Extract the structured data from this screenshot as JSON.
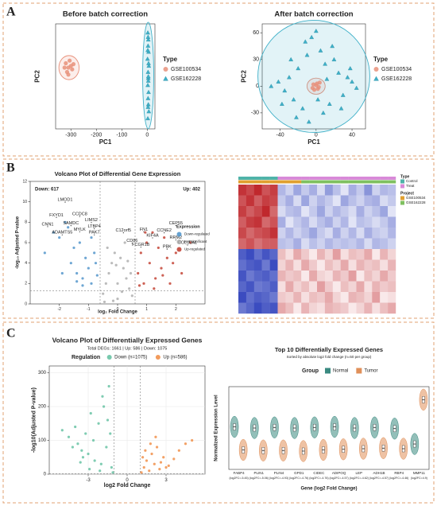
{
  "panels": [
    "A",
    "B",
    "C"
  ],
  "chart_data": [
    {
      "type": "scatter",
      "title": "Before batch correction",
      "x_label": "PC1",
      "y_label": "PC2",
      "xlim": [
        -360,
        30
      ],
      "xticks": [
        -300,
        -200,
        -100,
        0
      ],
      "ylim": [
        -60,
        60
      ],
      "legend_title": "Type",
      "markers": [
        "circle",
        "triangle"
      ],
      "ellipses": true,
      "series": [
        {
          "name": "GSE100534",
          "color": "#e8907a",
          "x": [
            -320,
            -310,
            -300,
            -315,
            -295,
            -305,
            -325,
            -290,
            -310
          ],
          "values": [
            15,
            10,
            12,
            5,
            8,
            18,
            10,
            14,
            2
          ]
        },
        {
          "name": "GSE162228",
          "color": "#3fb0c8",
          "x": [
            2,
            4,
            3,
            5,
            1,
            6,
            3,
            4,
            2,
            5,
            3,
            4,
            6,
            2,
            3,
            5,
            4,
            3,
            2,
            4
          ],
          "values": [
            50,
            42,
            35,
            28,
            20,
            12,
            5,
            -2,
            -10,
            -18,
            -25,
            -32,
            -40,
            -48,
            45,
            15,
            -5,
            -35,
            30,
            0
          ]
        }
      ]
    },
    {
      "type": "scatter",
      "title": "After batch correction",
      "x_label": "PC1",
      "y_label": "PC2",
      "xlim": [
        -60,
        55
      ],
      "xticks": [
        -40,
        0,
        40
      ],
      "ylim": [
        -48,
        70
      ],
      "yticks": [
        -30,
        0,
        30,
        60
      ],
      "legend_title": "Type",
      "markers": [
        "circle",
        "triangle"
      ],
      "ellipses": true,
      "series": [
        {
          "name": "GSE100534",
          "color": "#e8907a",
          "x": [
            -3,
            2,
            4,
            -2,
            0,
            3,
            -4,
            1
          ],
          "values": [
            2,
            -3,
            4,
            -4,
            1,
            -1,
            -2,
            3
          ]
        },
        {
          "name": "GSE162228",
          "color": "#3fb0c8",
          "x": [
            -50,
            -42,
            -35,
            -30,
            -25,
            -20,
            -15,
            -10,
            -5,
            0,
            5,
            10,
            15,
            20,
            25,
            30,
            35,
            40,
            45,
            -38,
            -22,
            -8,
            8,
            18,
            28,
            38,
            -28,
            12,
            2,
            -12
          ],
          "values": [
            0,
            5,
            -5,
            10,
            -15,
            20,
            -25,
            35,
            55,
            62,
            40,
            25,
            -20,
            30,
            15,
            -10,
            10,
            5,
            -2,
            -20,
            -35,
            -40,
            -30,
            45,
            -25,
            20,
            30,
            8,
            -15,
            50
          ]
        }
      ]
    },
    {
      "type": "volcano",
      "title": "Volcano Plot of Differential Gene Expression",
      "x_label": "log₂ Fold Change",
      "y_label": "-log₁₀ Adjusted P-value",
      "xlim": [
        -3,
        3
      ],
      "xticks": [
        -2,
        -1,
        0,
        1,
        2
      ],
      "ylim": [
        0,
        12
      ],
      "yticks": [
        0,
        2,
        4,
        6,
        8,
        10,
        12
      ],
      "thresholds": {
        "x": [
          -0.6,
          0.6
        ],
        "y": 1.3
      },
      "counts": [
        {
          "label": "Down: 617",
          "color": "#4a90c8"
        },
        {
          "label": "Up: 402",
          "color": "#c0392b"
        }
      ],
      "legend_title": "Expression",
      "series": [
        {
          "name": "Down-regulated",
          "color": "#4a90c8",
          "x": [
            -2.5,
            -2.2,
            -2.0,
            -1.8,
            -1.6,
            -1.5,
            -1.4,
            -1.3,
            -1.2,
            -1.1,
            -1.0,
            -0.9,
            -0.8,
            -0.7,
            -1.7,
            -1.9,
            -1.2,
            -0.9,
            -0.75,
            -1.4
          ],
          "values": [
            5,
            7,
            6.5,
            8,
            4,
            5.5,
            3,
            6,
            2.5,
            4.5,
            3.5,
            2,
            5,
            2.8,
            7.5,
            3,
            1.8,
            6.5,
            4,
            2.2
          ]
        },
        {
          "name": "Not significant",
          "color": "#aaaaaa",
          "x": [
            -0.5,
            -0.4,
            -0.3,
            -0.2,
            -0.1,
            0,
            0.1,
            0.2,
            0.3,
            0.4,
            0.5,
            -0.35,
            0.25,
            -0.15,
            0.45,
            0,
            -0.45,
            0.15,
            -0.05,
            0.35
          ],
          "values": [
            1,
            2,
            3,
            4,
            5,
            0.5,
            4.5,
            3.5,
            2.5,
            1.5,
            0.8,
            5.5,
            6,
            0.3,
            3,
            2,
            0.2,
            1.2,
            3.8,
            4.2
          ]
        },
        {
          "name": "Up-regulated",
          "color": "#c0392b",
          "x": [
            0.7,
            0.8,
            0.9,
            1.0,
            1.1,
            1.2,
            1.3,
            1.4,
            1.5,
            1.6,
            1.7,
            1.8,
            2.0,
            2.2,
            2.5,
            0.75,
            0.95,
            1.25,
            1.55,
            1.9
          ],
          "values": [
            3,
            5,
            2,
            6,
            4,
            7,
            2.5,
            5.5,
            3.5,
            6.5,
            4.5,
            2,
            5,
            3,
            6,
            1.8,
            7,
            1.5,
            2.8,
            4
          ]
        }
      ],
      "annotations": [
        {
          "label": "LMOD1",
          "x": -1.8,
          "y": 10.2
        },
        {
          "label": "FXYD1",
          "x": -2.1,
          "y": 8.7
        },
        {
          "label": "CCDC8",
          "x": -1.3,
          "y": 8.8
        },
        {
          "label": "LIMS2",
          "x": -0.9,
          "y": 8.2
        },
        {
          "label": "CNN1",
          "x": -2.4,
          "y": 7.8
        },
        {
          "label": "SAMDC",
          "x": -1.6,
          "y": 7.9
        },
        {
          "label": "LTBP4",
          "x": -0.8,
          "y": 7.6
        },
        {
          "label": "MYLK",
          "x": -1.3,
          "y": 7.3
        },
        {
          "label": "ADAMTS5",
          "x": -1.9,
          "y": 7.0
        },
        {
          "label": "PAK7",
          "x": -0.8,
          "y": 7.0
        },
        {
          "label": "C12orf5",
          "x": 0.2,
          "y": 7.2
        },
        {
          "label": "FN1",
          "x": 0.9,
          "y": 7.3
        },
        {
          "label": "CEP55",
          "x": 2.0,
          "y": 7.9
        },
        {
          "label": "CCNE2",
          "x": 1.6,
          "y": 7.2
        },
        {
          "label": "KIF4A",
          "x": 1.2,
          "y": 6.7
        },
        {
          "label": "RRM2",
          "x": 2.0,
          "y": 6.5
        },
        {
          "label": "CD86",
          "x": 0.5,
          "y": 6.2
        },
        {
          "label": "FCGR1B",
          "x": 0.8,
          "y": 5.8
        },
        {
          "label": "COL10A1",
          "x": 2.4,
          "y": 6.0
        },
        {
          "label": "PBK",
          "x": 1.7,
          "y": 5.6
        }
      ]
    },
    {
      "type": "heatmap",
      "zlim": [
        -2,
        2
      ],
      "colors": [
        "#3b4cc0",
        "#ffffff",
        "#c0282d"
      ],
      "values": [
        [
          1.9,
          1.7,
          2.0,
          1.6,
          1.8,
          -0.8,
          -0.5,
          -1.0,
          -0.6,
          -0.9,
          -0.4,
          -1.1,
          -0.7,
          -0.3,
          -0.9,
          -0.6,
          -1.2,
          -0.5,
          -0.8,
          -0.7
        ],
        [
          1.6,
          1.9,
          1.5,
          1.8,
          1.7,
          -0.6,
          -0.9,
          -0.4,
          -1.0,
          -0.5,
          -0.8,
          -0.6,
          -0.3,
          -1.0,
          -0.7,
          -0.5,
          -0.8,
          -0.9,
          -0.4,
          -0.6
        ],
        [
          1.8,
          1.5,
          1.7,
          2.0,
          1.4,
          -0.4,
          -0.7,
          -0.8,
          -0.3,
          -0.6,
          -1.0,
          -0.5,
          -0.8,
          -0.6,
          -0.4,
          -0.9,
          -0.5,
          -0.7,
          -1.0,
          -0.3
        ],
        [
          1.5,
          1.8,
          1.9,
          1.4,
          1.6,
          -0.9,
          -0.3,
          -0.6,
          -0.8,
          -0.4,
          -0.7,
          -0.9,
          -0.5,
          -0.8,
          -0.3,
          -0.7,
          -0.6,
          -0.4,
          -0.6,
          -0.9
        ],
        [
          1.7,
          1.4,
          1.6,
          1.7,
          1.9,
          -0.5,
          -0.8,
          -0.5,
          -0.7,
          -1.0,
          -0.6,
          -0.4,
          -0.9,
          -0.5,
          -0.8,
          -0.4,
          -0.9,
          -0.6,
          -0.5,
          -0.8
        ],
        [
          1.4,
          1.6,
          1.3,
          1.5,
          1.5,
          -0.7,
          -0.6,
          -0.9,
          -0.4,
          -0.7,
          -0.5,
          -0.8,
          -0.6,
          -0.7,
          -0.6,
          -0.8,
          -0.4,
          -0.8,
          -0.7,
          -0.5
        ],
        [
          -1.8,
          -2.0,
          -1.6,
          -1.9,
          -1.7,
          0.6,
          0.3,
          0.8,
          0.5,
          0.2,
          0.7,
          0.4,
          0.9,
          0.3,
          0.6,
          0.5,
          0.8,
          0.2,
          0.7,
          0.4
        ],
        [
          -1.6,
          -1.8,
          -1.9,
          -1.5,
          -2.0,
          0.4,
          0.7,
          0.3,
          0.8,
          0.5,
          0.2,
          0.6,
          0.4,
          0.8,
          0.3,
          0.7,
          0.5,
          0.6,
          0.3,
          0.7
        ],
        [
          -1.9,
          -1.5,
          -1.7,
          -1.8,
          -1.6,
          0.7,
          0.5,
          0.6,
          0.2,
          0.8,
          0.4,
          0.3,
          0.7,
          0.5,
          0.9,
          0.2,
          0.6,
          0.4,
          0.8,
          0.5
        ],
        [
          -1.7,
          -1.9,
          -1.5,
          -1.6,
          -1.8,
          0.3,
          0.8,
          0.4,
          0.6,
          0.3,
          0.9,
          0.5,
          0.2,
          0.6,
          0.4,
          0.8,
          0.3,
          0.7,
          0.5,
          0.6
        ],
        [
          -2.0,
          -1.6,
          -1.8,
          -1.7,
          -1.5,
          0.5,
          0.4,
          0.7,
          0.3,
          0.6,
          0.5,
          0.8,
          0.4,
          0.2,
          0.7,
          0.6,
          0.4,
          0.9,
          0.2,
          0.3
        ],
        [
          -1.5,
          -1.7,
          -2.0,
          -1.8,
          -1.9,
          0.8,
          0.6,
          0.2,
          0.7,
          0.4,
          0.3,
          0.7,
          0.6,
          0.5,
          0.2,
          0.4,
          0.7,
          0.3,
          0.6,
          0.8
        ]
      ],
      "col_type": [
        0,
        0,
        0,
        0,
        0,
        1,
        1,
        1,
        1,
        1,
        1,
        1,
        1,
        1,
        1,
        1,
        1,
        1,
        1,
        1
      ],
      "col_project": [
        0,
        0,
        0,
        0,
        0,
        0,
        0,
        0,
        1,
        1,
        1,
        1,
        1,
        1,
        1,
        1,
        1,
        1,
        1,
        1
      ],
      "legends": [
        {
          "title": "Type",
          "items": [
            {
              "name": "Control",
              "color": "#4fb3a9"
            },
            {
              "name": "Treat",
              "color": "#d88ad8"
            }
          ]
        },
        {
          "title": "Project",
          "items": [
            {
              "name": "GSE100534",
              "color": "#e0a030"
            },
            {
              "name": "GSE162228",
              "color": "#7fc060"
            }
          ]
        }
      ]
    },
    {
      "type": "volcano",
      "title": "Volcano Plot of Differentially Expressed Genes",
      "subtitle": "Total DEGs: 1661 | Up: 586 | Down: 1075",
      "x_label": "log2 Fold Change",
      "y_label": "-log10(Adjusted P-value)",
      "xlim": [
        -6,
        6
      ],
      "xticks": [
        -3,
        0,
        3
      ],
      "ylim": [
        0,
        320
      ],
      "yticks": [
        0,
        100,
        200,
        300
      ],
      "grid": true,
      "thresholds": {
        "x": [
          -1,
          1
        ],
        "y": 1.3
      },
      "legend_title": "Regulation",
      "series": [
        {
          "name": "Down (n=1075)",
          "color": "#5fbf9f",
          "x": [
            -5,
            -4.5,
            -4,
            -3.8,
            -3.5,
            -3.2,
            -3,
            -2.8,
            -2.5,
            -2.2,
            -2,
            -1.8,
            -1.6,
            -1.4,
            -1.2,
            -2.6,
            -3.4,
            -1.5,
            -2.1,
            -4.2,
            -1.1,
            -1.3,
            -2.9,
            -3.6,
            -1.9
          ],
          "values": [
            130,
            110,
            140,
            90,
            70,
            120,
            60,
            180,
            40,
            150,
            30,
            200,
            80,
            260,
            20,
            100,
            50,
            160,
            10,
            80,
            5,
            120,
            15,
            35,
            230
          ]
        },
        {
          "name": "Up (n=586)",
          "color": "#f08a40",
          "x": [
            1.1,
            1.3,
            1.5,
            1.7,
            1.9,
            2.1,
            2.3,
            2.5,
            2.8,
            3.2,
            3.6,
            4,
            4.5,
            5,
            1.4,
            1.8,
            2.2,
            2.6,
            3,
            1.2
          ],
          "values": [
            5,
            20,
            40,
            10,
            60,
            30,
            80,
            15,
            50,
            25,
            45,
            70,
            90,
            100,
            70,
            90,
            110,
            35,
            20,
            50
          ]
        }
      ]
    },
    {
      "type": "violin",
      "title": "Top 10 Differentially Expressed Genes",
      "subtitle": "Sorted by absolute log2 fold change (n=50 per group)",
      "x_label": "Gene (log2 Fold Change)",
      "y_label": "Normalized Expression Level",
      "ylim": [
        -2,
        12
      ],
      "grid": true,
      "legend_title": "Group",
      "categories": [
        "FABP4",
        "PLIN1",
        "PLIN4",
        "GPD1",
        "CIDEC",
        "ADIPOQ",
        "LEP",
        "ADH1B",
        "RBP4",
        "MMP11"
      ],
      "category_notes": [
        "(log2FC=-5.45)",
        "(log2FC=-5.06)",
        "(log2FC=-4.93)",
        "(log2FC=-4.76)",
        "(log2FC=-4.76)",
        "(log2FC=-4.57)",
        "(log2FC=-4.62)",
        "(log2FC=-4.57)",
        "(log2FC=-4.46)",
        "(log2FC=4.9)"
      ],
      "series": [
        {
          "name": "Normal",
          "color": "#3a8a80",
          "values": [
            5.2,
            5.0,
            5.1,
            5.0,
            5.1,
            5.2,
            5.0,
            5.1,
            4.9,
            2.3
          ]
        },
        {
          "name": "Tumor",
          "color": "#e0905a",
          "values": [
            1.3,
            1.2,
            1.2,
            1.1,
            1.3,
            1.4,
            1.5,
            1.6,
            1.5,
            9.8
          ]
        }
      ]
    }
  ]
}
